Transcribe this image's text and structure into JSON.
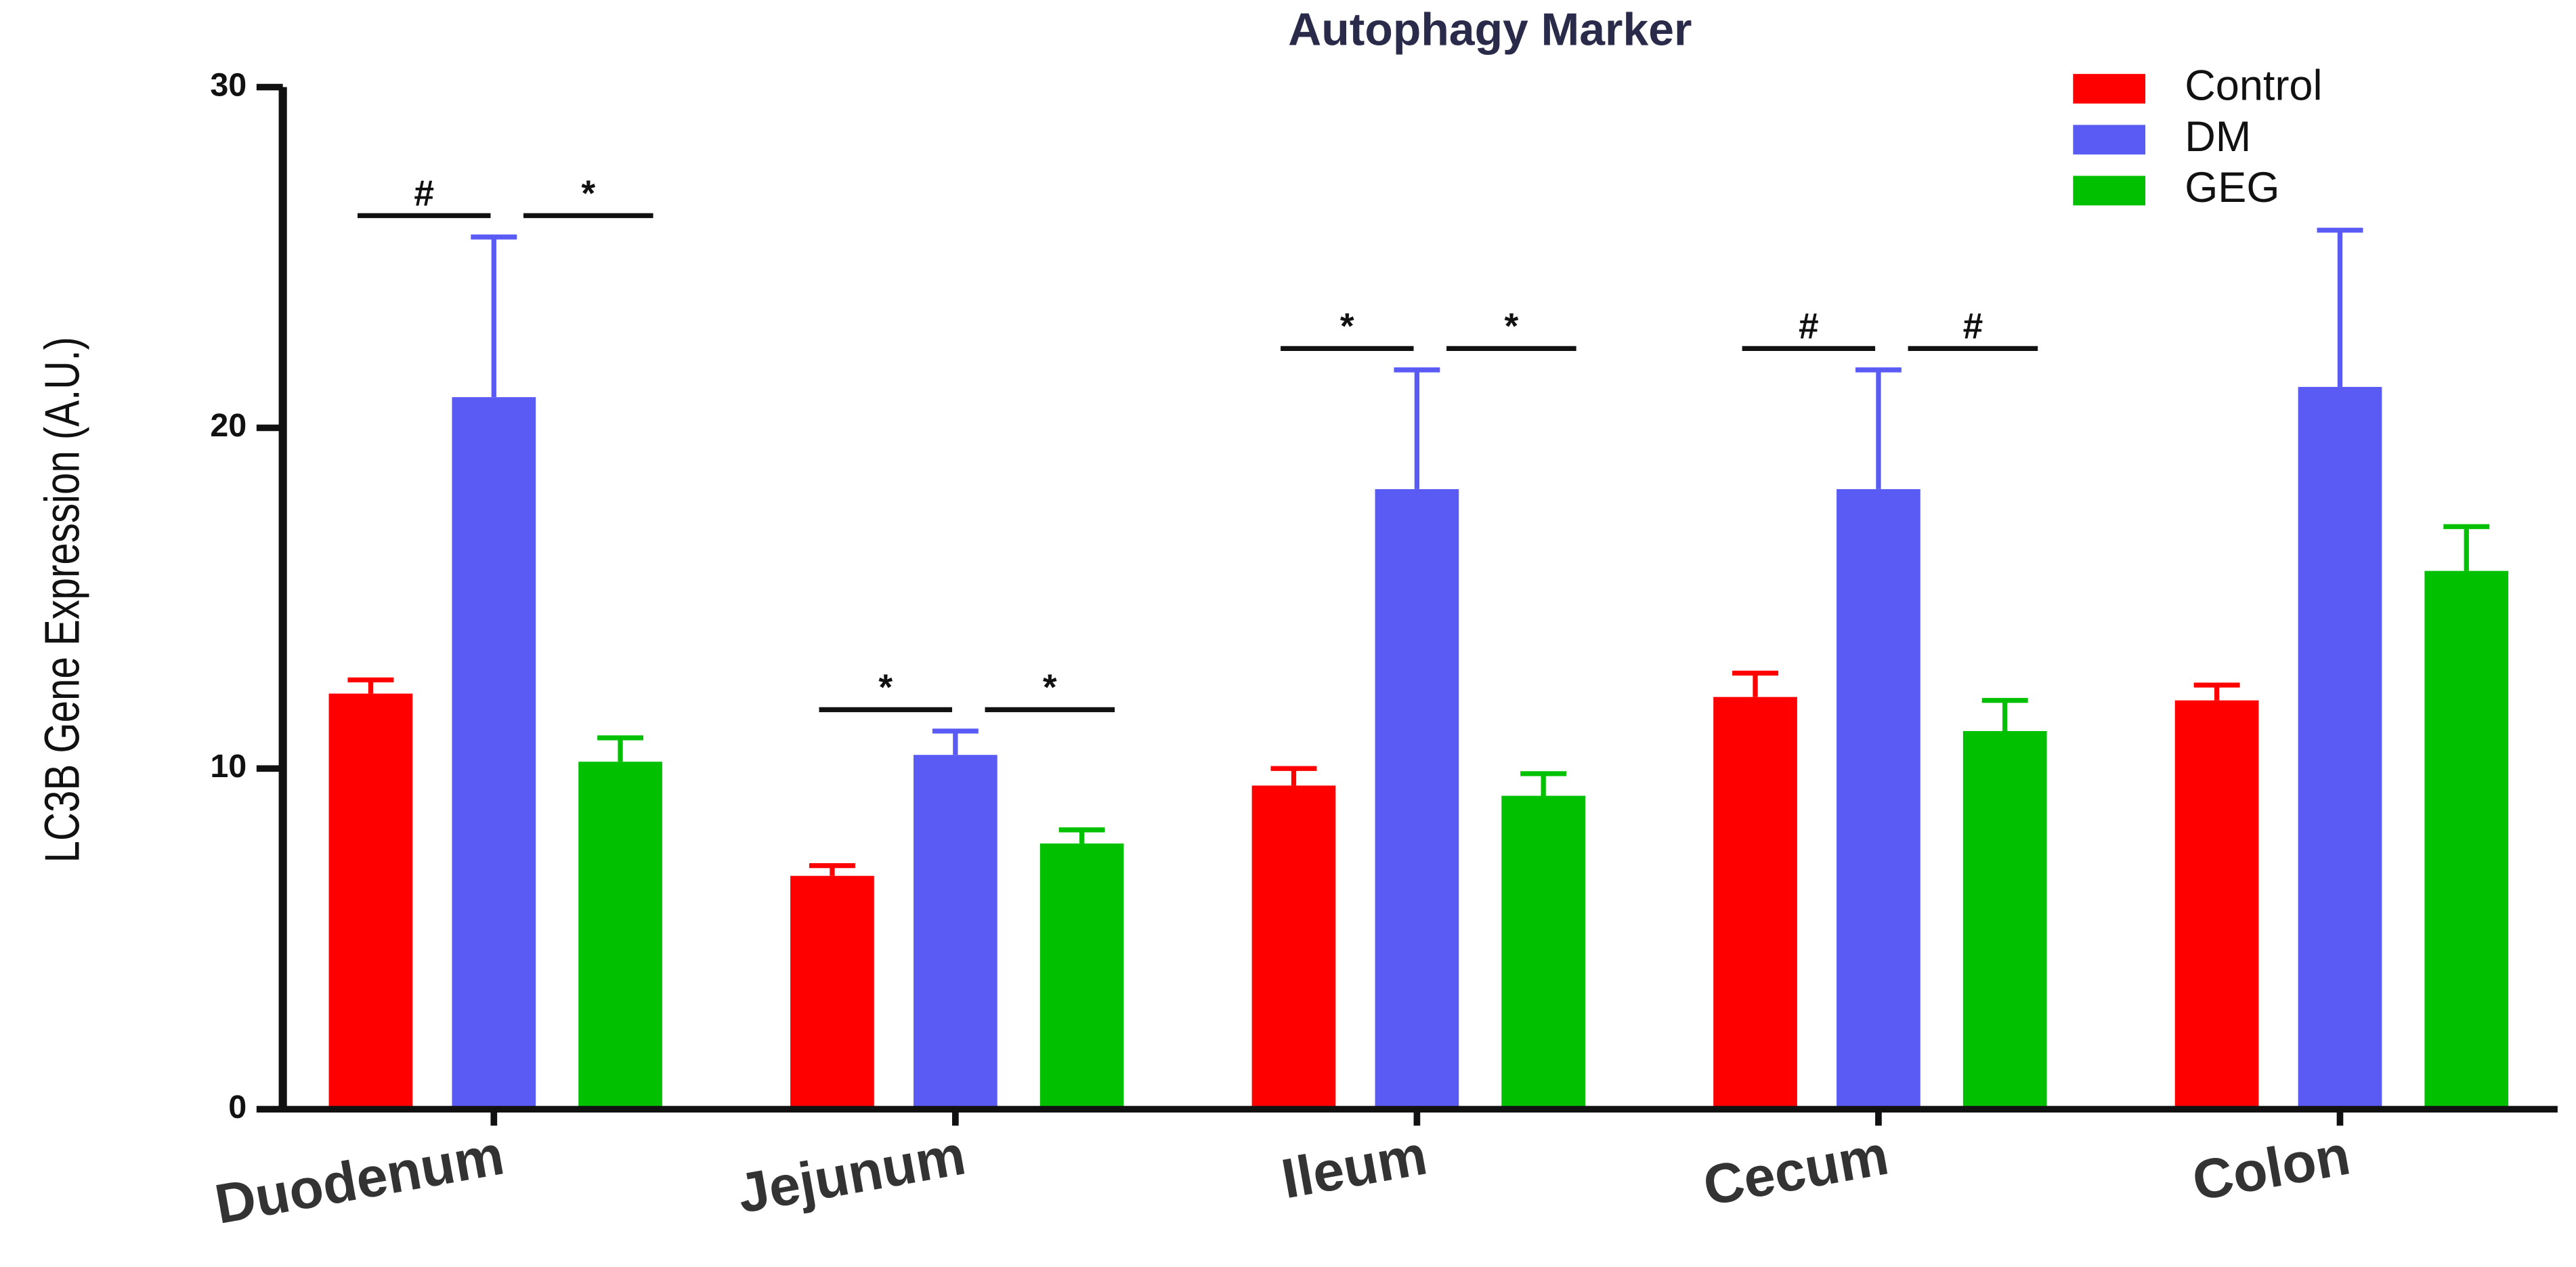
{
  "chart_data": {
    "type": "bar",
    "title": "Autophagy Marker",
    "y_label": "LC3B Gene Expression (A.U.)",
    "categories": [
      "Duodenum",
      "Jejunum",
      "Ileum",
      "Cecum",
      "Colon"
    ],
    "series": [
      {
        "name": "Control",
        "color": "#ff0000",
        "values": [
          12.2,
          6.85,
          9.5,
          12.1,
          12.0
        ],
        "errors": [
          0.4,
          0.3,
          0.5,
          0.7,
          0.45
        ]
      },
      {
        "name": "DM",
        "color": "#5a5af5",
        "values": [
          20.9,
          10.4,
          18.2,
          18.2,
          21.2
        ],
        "errors": [
          4.7,
          0.7,
          3.5,
          3.5,
          4.6
        ]
      },
      {
        "name": "GEG",
        "color": "#00c000",
        "values": [
          10.2,
          7.8,
          9.2,
          11.1,
          15.8
        ],
        "errors": [
          0.7,
          0.4,
          0.65,
          0.9,
          1.3
        ]
      }
    ],
    "ylim": [
      0,
      30
    ],
    "yticks": [
      0,
      10,
      20,
      30
    ],
    "grid": false,
    "legend": "top-right",
    "annotations": [
      {
        "category": "Duodenum",
        "between": [
          "Control",
          "DM"
        ],
        "label": "#"
      },
      {
        "category": "Duodenum",
        "between": [
          "DM",
          "GEG"
        ],
        "label": "*"
      },
      {
        "category": "Jejunum",
        "between": [
          "Control",
          "DM"
        ],
        "label": "*"
      },
      {
        "category": "Jejunum",
        "between": [
          "DM",
          "GEG"
        ],
        "label": "*"
      },
      {
        "category": "Ileum",
        "between": [
          "Control",
          "DM"
        ],
        "label": "*"
      },
      {
        "category": "Ileum",
        "between": [
          "DM",
          "GEG"
        ],
        "label": "*"
      },
      {
        "category": "Cecum",
        "between": [
          "Control",
          "DM"
        ],
        "label": "#"
      },
      {
        "category": "Cecum",
        "between": [
          "DM",
          "GEG"
        ],
        "label": "#"
      }
    ]
  }
}
